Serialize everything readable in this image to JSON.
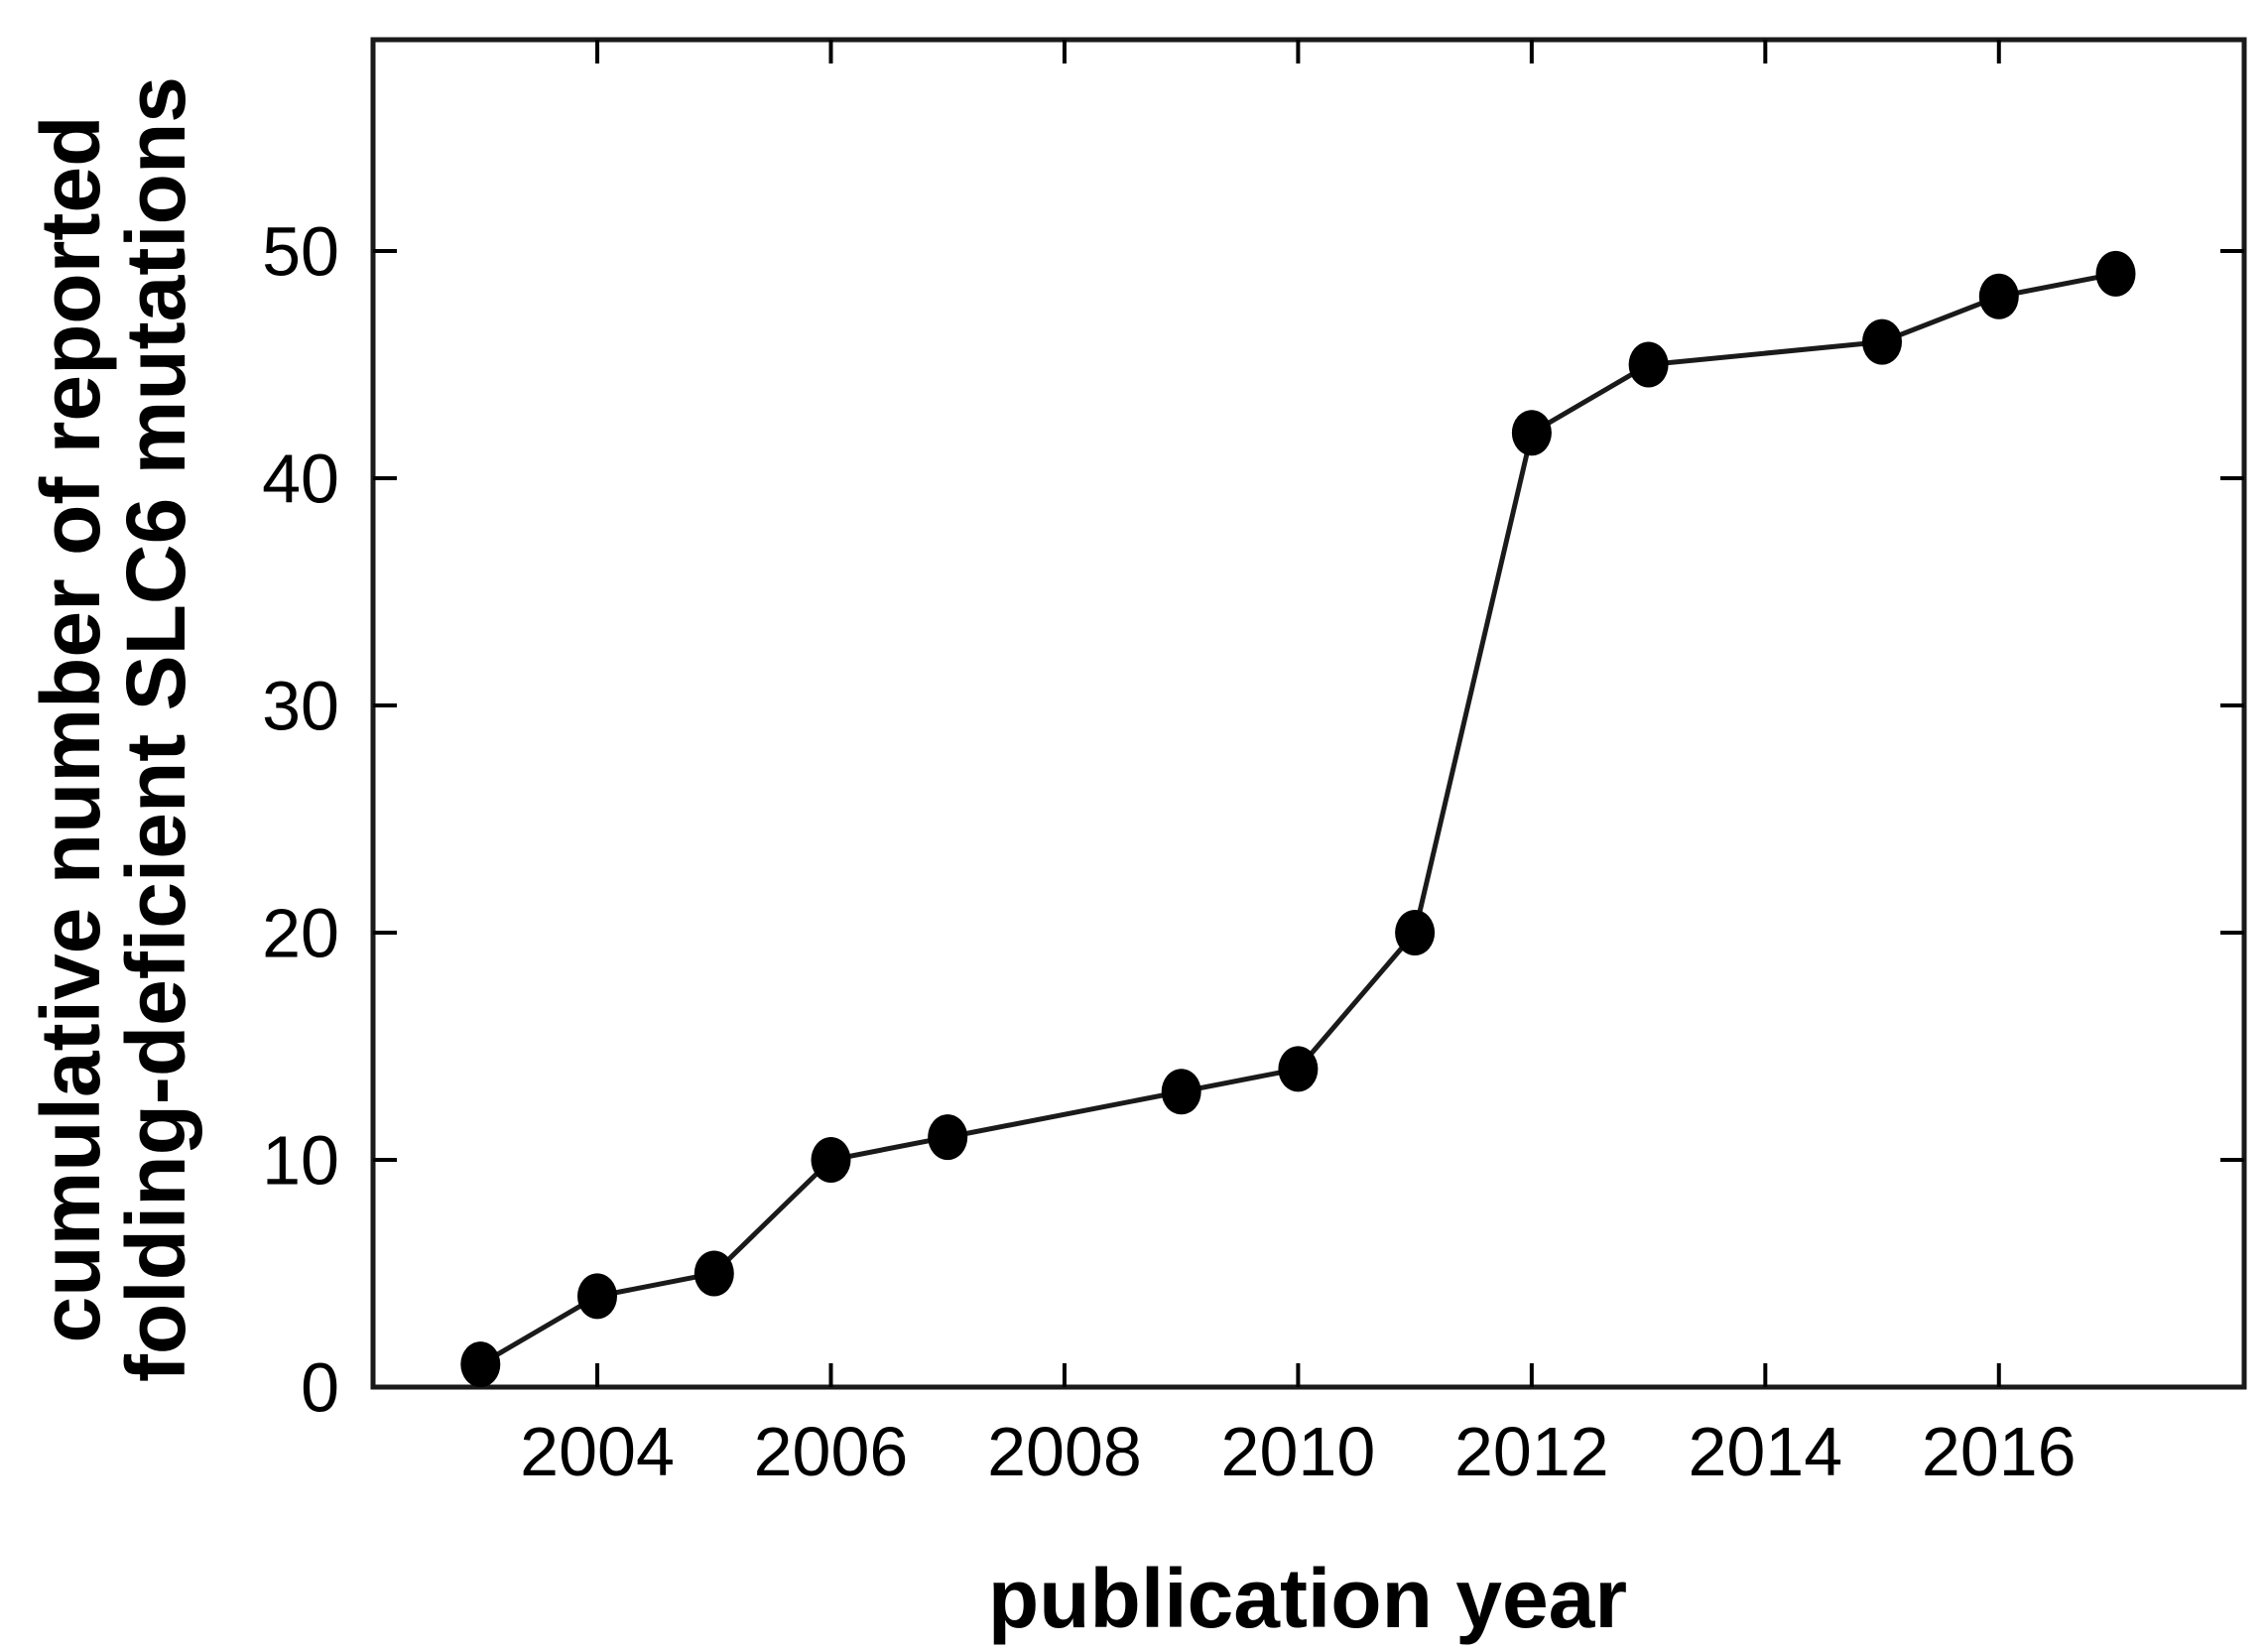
{
  "figure": {
    "background": "#ffffff",
    "ink_color": "#000000",
    "line_color": "#1a1a1a",
    "marker_color": "#000000"
  },
  "chart_data": {
    "type": "line",
    "title": "",
    "xlabel": "publication year",
    "ylabel_lines": [
      "cumulative number of reported",
      "folding-deficient SLC6 mutations"
    ],
    "series": [
      {
        "name": "cumulative reported folding-deficient SLC6 mutations",
        "points": [
          {
            "year": 2003,
            "count": 1
          },
          {
            "year": 2004,
            "count": 4
          },
          {
            "year": 2005,
            "count": 5
          },
          {
            "year": 2006,
            "count": 10
          },
          {
            "year": 2007,
            "count": 11
          },
          {
            "year": 2009,
            "count": 13
          },
          {
            "year": 2010,
            "count": 14
          },
          {
            "year": 2011,
            "count": 20
          },
          {
            "year": 2012,
            "count": 42
          },
          {
            "year": 2013,
            "count": 45
          },
          {
            "year": 2015,
            "count": 46
          },
          {
            "year": 2016,
            "count": 48
          },
          {
            "year": 2017,
            "count": 49
          }
        ]
      }
    ],
    "x_ticks": [
      2004,
      2006,
      2008,
      2010,
      2012,
      2014,
      2016
    ],
    "x_tick_labels": [
      "2004",
      "2006",
      "2008",
      "2010",
      "2012",
      "2014",
      "2016"
    ],
    "y_ticks": [
      0,
      10,
      20,
      30,
      40,
      50
    ],
    "y_tick_labels": [
      "0",
      "10",
      "20",
      "30",
      "40",
      "50"
    ],
    "xlim": [
      2002.08,
      2018.1
    ],
    "ylim": [
      0,
      59.3
    ],
    "grid": false,
    "legend_position": "none",
    "marker": "filled-circle",
    "ticks_direction": "in",
    "mirrored_ticks": true
  }
}
